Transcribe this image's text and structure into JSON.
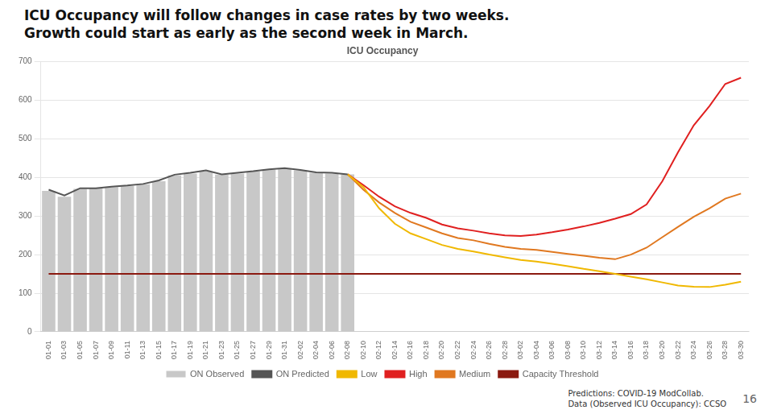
{
  "chart_data": {
    "type": "bar",
    "heading": [
      "ICU Occupancy will follow changes in case rates by two weeks.",
      "Growth could start as early as the second week in March."
    ],
    "title": "ICU Occupancy",
    "categories": [
      "01-01",
      "01-03",
      "01-05",
      "01-07",
      "01-09",
      "01-11",
      "01-13",
      "01-15",
      "01-17",
      "01-19",
      "01-21",
      "01-23",
      "01-25",
      "01-27",
      "01-29",
      "01-31",
      "02-02",
      "02-04",
      "02-06",
      "02-08",
      "02-10",
      "02-12",
      "02-14",
      "02-16",
      "02-18",
      "02-20",
      "02-22",
      "02-24",
      "02-26",
      "02-28",
      "03-02",
      "03-04",
      "03-06",
      "03-08",
      "03-10",
      "03-12",
      "03-14",
      "03-16",
      "03-18",
      "03-20",
      "03-22",
      "03-24",
      "03-26",
      "03-28",
      "03-30"
    ],
    "series": [
      {
        "name": "ON Observed",
        "type": "bar",
        "color": "#c8c8c8",
        "values": [
          365,
          350,
          370,
          372,
          375,
          378,
          382,
          390,
          405,
          410,
          415,
          407,
          410,
          415,
          420,
          423,
          418,
          412,
          410,
          408,
          null,
          null,
          null,
          null,
          null,
          null,
          null,
          null,
          null,
          null,
          null,
          null,
          null,
          null,
          null,
          null,
          null,
          null,
          null,
          null,
          null,
          null,
          null,
          null,
          null
        ]
      },
      {
        "name": "ON Predicted",
        "type": "line",
        "color": "#555555",
        "values": [
          368,
          353,
          372,
          372,
          376,
          379,
          383,
          392,
          407,
          412,
          418,
          408,
          412,
          416,
          421,
          424,
          419,
          413,
          412,
          408,
          null,
          null,
          null,
          null,
          null,
          null,
          null,
          null,
          null,
          null,
          null,
          null,
          null,
          null,
          null,
          null,
          null,
          null,
          null,
          null,
          null,
          null,
          null,
          null,
          null
        ]
      },
      {
        "name": "Low",
        "type": "line",
        "color": "#f0b800",
        "values": [
          null,
          null,
          null,
          null,
          null,
          null,
          null,
          null,
          null,
          null,
          null,
          null,
          null,
          null,
          null,
          null,
          null,
          null,
          null,
          408,
          375,
          320,
          280,
          255,
          240,
          225,
          215,
          208,
          200,
          193,
          186,
          182,
          176,
          170,
          163,
          157,
          150,
          143,
          136,
          128,
          120,
          117,
          116,
          122,
          130
        ]
      },
      {
        "name": "High",
        "type": "line",
        "color": "#e02020",
        "values": [
          null,
          null,
          null,
          null,
          null,
          null,
          null,
          null,
          null,
          null,
          null,
          null,
          null,
          null,
          null,
          null,
          null,
          null,
          null,
          408,
          380,
          350,
          325,
          308,
          295,
          278,
          268,
          262,
          255,
          250,
          248,
          252,
          258,
          265,
          273,
          282,
          293,
          305,
          330,
          390,
          465,
          535,
          585,
          642,
          658
        ]
      },
      {
        "name": "Medium",
        "type": "line",
        "color": "#e07820",
        "values": [
          null,
          null,
          null,
          null,
          null,
          null,
          null,
          null,
          null,
          null,
          null,
          null,
          null,
          null,
          null,
          null,
          null,
          null,
          null,
          408,
          368,
          335,
          308,
          285,
          270,
          255,
          243,
          237,
          228,
          220,
          215,
          212,
          207,
          202,
          197,
          192,
          188,
          200,
          218,
          245,
          272,
          298,
          320,
          345,
          358
        ]
      }
    ],
    "threshold": {
      "name": "Capacity Threshold",
      "value": 150,
      "color": "#8b1a10"
    },
    "ylim": [
      0,
      700
    ],
    "yticks": [
      0,
      100,
      200,
      300,
      400,
      500,
      600,
      700
    ],
    "grid": "y",
    "legend": "bottom",
    "annotations": [
      "Predictions: COVID-19 ModCollab.",
      "Data (Observed ICU Occupancy): CCSO"
    ],
    "page_number": "16"
  }
}
